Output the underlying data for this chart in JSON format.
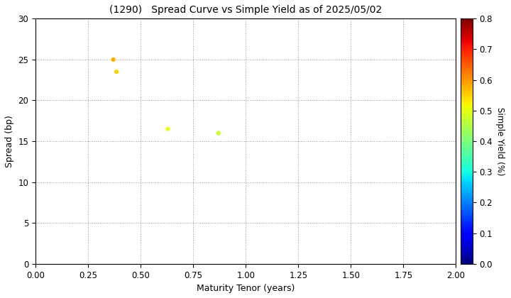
{
  "title": "(1290)   Spread Curve vs Simple Yield as of 2025/05/02",
  "xlabel": "Maturity Tenor (years)",
  "ylabel": "Spread (bp)",
  "colorbar_label": "Simple Yield (%)",
  "xlim": [
    0.0,
    2.0
  ],
  "ylim": [
    0.0,
    30.0
  ],
  "xticks": [
    0.0,
    0.25,
    0.5,
    0.75,
    1.0,
    1.25,
    1.5,
    1.75,
    2.0
  ],
  "yticks": [
    0,
    5,
    10,
    15,
    20,
    25,
    30
  ],
  "colorbar_min": 0.0,
  "colorbar_max": 0.8,
  "colorbar_ticks": [
    0.0,
    0.1,
    0.2,
    0.3,
    0.4,
    0.5,
    0.6,
    0.7,
    0.8
  ],
  "scatter_x": [
    0.37,
    0.385,
    0.63,
    0.87
  ],
  "scatter_y": [
    25.0,
    23.5,
    16.5,
    16.0
  ],
  "scatter_simple_yield": [
    0.58,
    0.55,
    0.5,
    0.48
  ],
  "marker_size": 20,
  "background_color": "#ffffff",
  "grid_color": "#999999",
  "grid_style": "dotted"
}
